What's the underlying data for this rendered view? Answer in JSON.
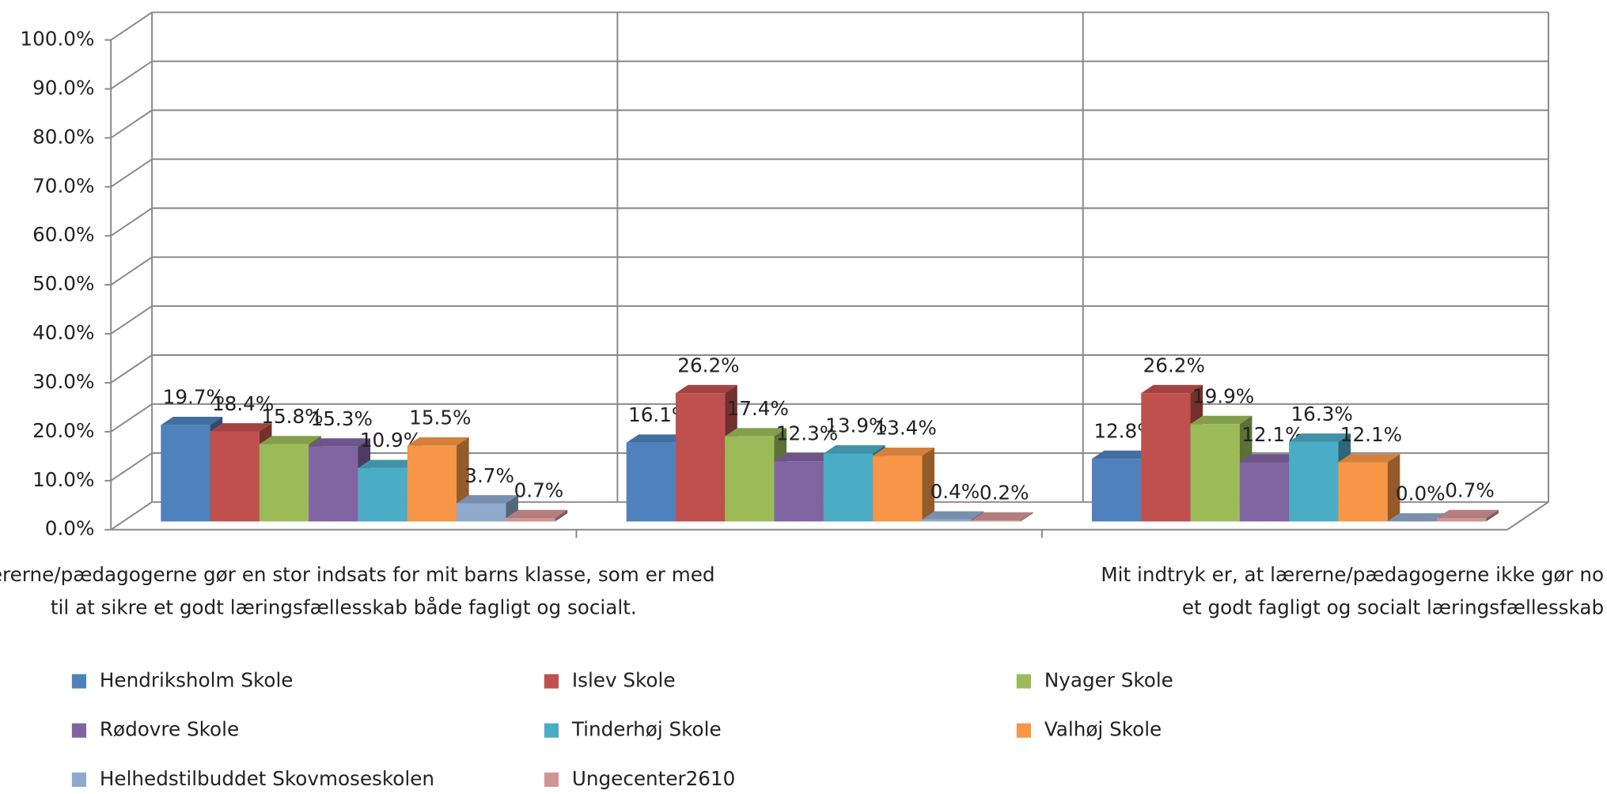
{
  "chart_data": {
    "type": "bar3d",
    "categories": [
      "Lærerne/pædagogerne gør en stor indsats for mit barns klasse, som er med\ntil at sikre et godt læringsfællesskab både fagligt og socialt.",
      null,
      "Mit indtryk er, at lærerne/pædagogerne ikke gør no\net godt fagligt og socialt læringsfællesskab"
    ],
    "ylim": [
      0,
      100
    ],
    "yticks": [
      {
        "value": 0,
        "label": "0.0%"
      },
      {
        "value": 10,
        "label": "10.0%"
      },
      {
        "value": 20,
        "label": "20.0%"
      },
      {
        "value": 30,
        "label": "30.0%"
      },
      {
        "value": 40,
        "label": "40.0%"
      },
      {
        "value": 50,
        "label": "50.0%"
      },
      {
        "value": 60,
        "label": "60.0%"
      },
      {
        "value": 70,
        "label": "70.0%"
      },
      {
        "value": 80,
        "label": "80.0%"
      },
      {
        "value": 90,
        "label": "90.0%"
      },
      {
        "value": 100,
        "label": "100.0%"
      }
    ],
    "grid": true,
    "legend": "bottom",
    "series": [
      {
        "name": "Hendriksholm Skole",
        "color": "#4f81bd",
        "values": [
          19.7,
          16.1,
          12.8
        ],
        "value_labels": [
          "19.7%",
          "16.1%",
          "12.8%"
        ]
      },
      {
        "name": "Islev Skole",
        "color": "#c0504d",
        "values": [
          18.4,
          26.2,
          26.2
        ],
        "value_labels": [
          "18.4%",
          "26.2%",
          "26.2%"
        ]
      },
      {
        "name": "Nyager Skole",
        "color": "#9bbb59",
        "values": [
          15.8,
          17.4,
          19.9
        ],
        "value_labels": [
          "15.8%",
          "17.4%",
          "19.9%"
        ]
      },
      {
        "name": "Rødovre Skole",
        "color": "#8064a2",
        "values": [
          15.3,
          12.3,
          12.1
        ],
        "value_labels": [
          "15.3%",
          "12.3%",
          "12.1%"
        ]
      },
      {
        "name": "Tinderhøj Skole",
        "color": "#4bacc6",
        "values": [
          10.9,
          13.9,
          16.3
        ],
        "value_labels": [
          "10.9%",
          "13.9%",
          "16.3%"
        ]
      },
      {
        "name": "Valhøj Skole",
        "color": "#f79646",
        "values": [
          15.5,
          13.4,
          12.1
        ],
        "value_labels": [
          "15.5%",
          "13.4%",
          "12.1%"
        ]
      },
      {
        "name": "Helhedstilbuddet Skovmoseskolen",
        "color": "#8ea9cc",
        "values": [
          3.7,
          0.4,
          0.0
        ],
        "value_labels": [
          "3.7%",
          "0.4%",
          "0.0%"
        ]
      },
      {
        "name": "Ungecenter2610",
        "color": "#d09493",
        "values": [
          0.7,
          0.2,
          0.7
        ],
        "value_labels": [
          "0.7%",
          "0.2%",
          "0.7%"
        ]
      }
    ]
  }
}
